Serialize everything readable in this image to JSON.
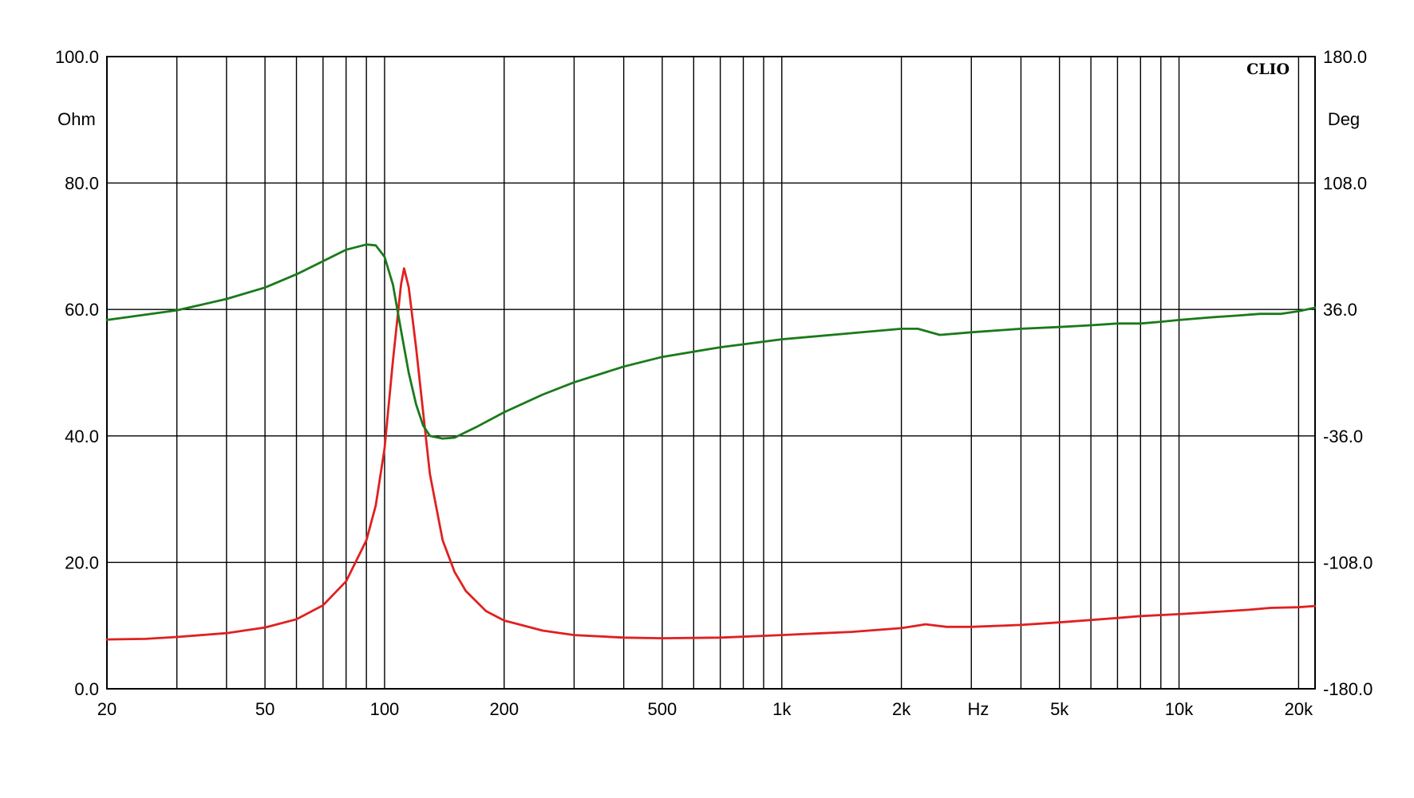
{
  "chart_data": {
    "type": "line",
    "brand": "CLIO",
    "xscale": "log",
    "xlim": [
      20,
      22000
    ],
    "xlabel": "Hz",
    "x_tick_labels": [
      {
        "x": 20,
        "label": "20"
      },
      {
        "x": 50,
        "label": "50"
      },
      {
        "x": 100,
        "label": "100"
      },
      {
        "x": 200,
        "label": "200"
      },
      {
        "x": 500,
        "label": "500"
      },
      {
        "x": 1000,
        "label": "1k"
      },
      {
        "x": 2000,
        "label": "2k"
      },
      {
        "x": 5000,
        "label": "5k"
      },
      {
        "x": 10000,
        "label": "10k"
      },
      {
        "x": 20000,
        "label": "20k"
      }
    ],
    "x_gridlines": [
      20,
      30,
      40,
      50,
      60,
      70,
      80,
      90,
      100,
      200,
      300,
      400,
      500,
      600,
      700,
      800,
      900,
      1000,
      2000,
      3000,
      4000,
      5000,
      6000,
      7000,
      8000,
      9000,
      10000,
      20000
    ],
    "ylabel_left": "Ohm",
    "ylim_left": [
      0,
      100
    ],
    "y_ticks_left": [
      "100.0",
      "80.0",
      "60.0",
      "40.0",
      "20.0",
      "0.0"
    ],
    "ylabel_right": "Deg",
    "ylim_right": [
      -180,
      180
    ],
    "y_ticks_right": [
      "180.0",
      "108.0",
      "36.0",
      "-36.0",
      "-108.0",
      "-180.0"
    ],
    "grid": true,
    "series": [
      {
        "axis": "left",
        "color": "#e02020",
        "points": [
          [
            20,
            7.8
          ],
          [
            25,
            7.9
          ],
          [
            30,
            8.2
          ],
          [
            40,
            8.8
          ],
          [
            50,
            9.7
          ],
          [
            60,
            11.0
          ],
          [
            70,
            13.2
          ],
          [
            80,
            17.0
          ],
          [
            90,
            23.5
          ],
          [
            95,
            29.0
          ],
          [
            100,
            38.0
          ],
          [
            105,
            52.0
          ],
          [
            110,
            64.0
          ],
          [
            112,
            66.5
          ],
          [
            115,
            63.5
          ],
          [
            120,
            54.0
          ],
          [
            130,
            34.0
          ],
          [
            140,
            23.5
          ],
          [
            150,
            18.5
          ],
          [
            160,
            15.5
          ],
          [
            180,
            12.3
          ],
          [
            200,
            10.8
          ],
          [
            250,
            9.2
          ],
          [
            300,
            8.5
          ],
          [
            400,
            8.1
          ],
          [
            500,
            8.0
          ],
          [
            700,
            8.1
          ],
          [
            1000,
            8.5
          ],
          [
            1500,
            9.0
          ],
          [
            2000,
            9.6
          ],
          [
            2300,
            10.2
          ],
          [
            2600,
            9.8
          ],
          [
            3000,
            9.8
          ],
          [
            4000,
            10.1
          ],
          [
            5000,
            10.5
          ],
          [
            7000,
            11.2
          ],
          [
            8000,
            11.5
          ],
          [
            10000,
            11.8
          ],
          [
            15000,
            12.5
          ],
          [
            17000,
            12.8
          ],
          [
            20000,
            12.9
          ],
          [
            22000,
            13.1
          ]
        ]
      },
      {
        "axis": "right",
        "color": "#1a7a1a",
        "points": [
          [
            20,
            30.0
          ],
          [
            30,
            35.5
          ],
          [
            40,
            42.0
          ],
          [
            50,
            48.5
          ],
          [
            60,
            56.0
          ],
          [
            70,
            63.5
          ],
          [
            80,
            70.0
          ],
          [
            90,
            73.0
          ],
          [
            95,
            72.5
          ],
          [
            100,
            66.0
          ],
          [
            105,
            50.0
          ],
          [
            110,
            24.0
          ],
          [
            115,
            0.0
          ],
          [
            120,
            -18.0
          ],
          [
            125,
            -30.0
          ],
          [
            130,
            -36.0
          ],
          [
            140,
            -37.5
          ],
          [
            150,
            -37.0
          ],
          [
            170,
            -31.0
          ],
          [
            200,
            -22.5
          ],
          [
            250,
            -12.5
          ],
          [
            300,
            -5.5
          ],
          [
            400,
            3.5
          ],
          [
            500,
            9.0
          ],
          [
            700,
            14.5
          ],
          [
            1000,
            19.0
          ],
          [
            1500,
            22.5
          ],
          [
            2000,
            25.0
          ],
          [
            2200,
            25.0
          ],
          [
            2500,
            21.5
          ],
          [
            3000,
            23.0
          ],
          [
            4000,
            25.0
          ],
          [
            5000,
            26.0
          ],
          [
            6000,
            27.0
          ],
          [
            7000,
            28.0
          ],
          [
            8000,
            28.0
          ],
          [
            9000,
            29.0
          ],
          [
            10000,
            30.0
          ],
          [
            12000,
            31.5
          ],
          [
            14000,
            32.5
          ],
          [
            16000,
            33.5
          ],
          [
            18000,
            33.5
          ],
          [
            20000,
            35.0
          ],
          [
            22000,
            37.0
          ]
        ]
      }
    ]
  }
}
